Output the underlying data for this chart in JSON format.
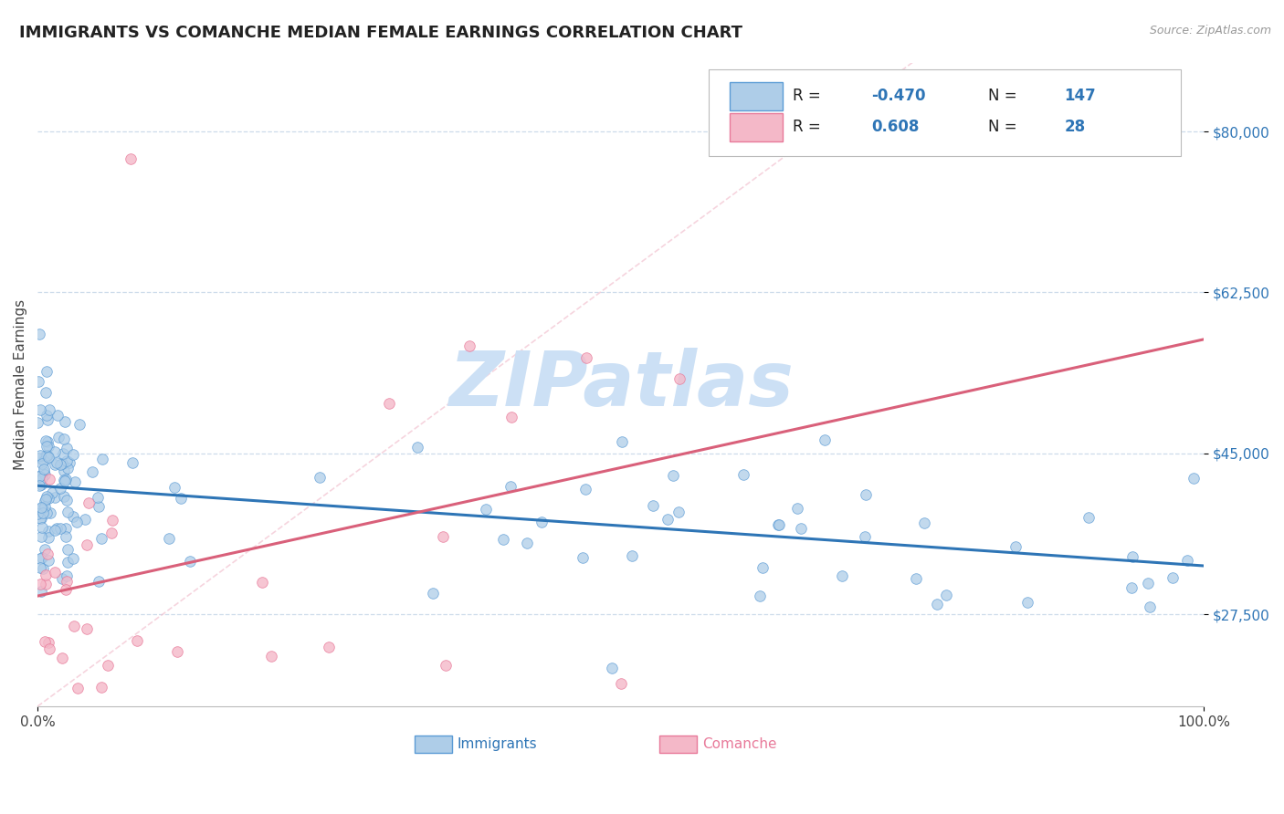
{
  "title": "IMMIGRANTS VS COMANCHE MEDIAN FEMALE EARNINGS CORRELATION CHART",
  "source_text": "Source: ZipAtlas.com",
  "ylabel": "Median Female Earnings",
  "xlim": [
    0.0,
    1.0
  ],
  "ylim": [
    17500,
    87500
  ],
  "yticks": [
    27500,
    45000,
    62500,
    80000
  ],
  "ytick_labels": [
    "$27,500",
    "$45,000",
    "$62,500",
    "$80,000"
  ],
  "xtick_labels": [
    "0.0%",
    "100.0%"
  ],
  "immigrants_R": -0.47,
  "immigrants_N": 147,
  "comanche_R": 0.608,
  "comanche_N": 28,
  "blue_fill": "#aecde8",
  "blue_edge": "#5b9bd5",
  "pink_fill": "#f4b8c8",
  "pink_edge": "#e87a9a",
  "trend_blue": "#2e75b6",
  "trend_pink": "#d9607a",
  "diag_color": "#f0b8c8",
  "grid_color": "#c8d8e8",
  "watermark_color": "#cce0f5",
  "title_color": "#222222",
  "tick_color": "#2e75b6",
  "label_color": "#444444",
  "title_fontsize": 13,
  "label_fontsize": 11,
  "tick_fontsize": 11,
  "legend_fontsize": 12,
  "dot_size": 70
}
